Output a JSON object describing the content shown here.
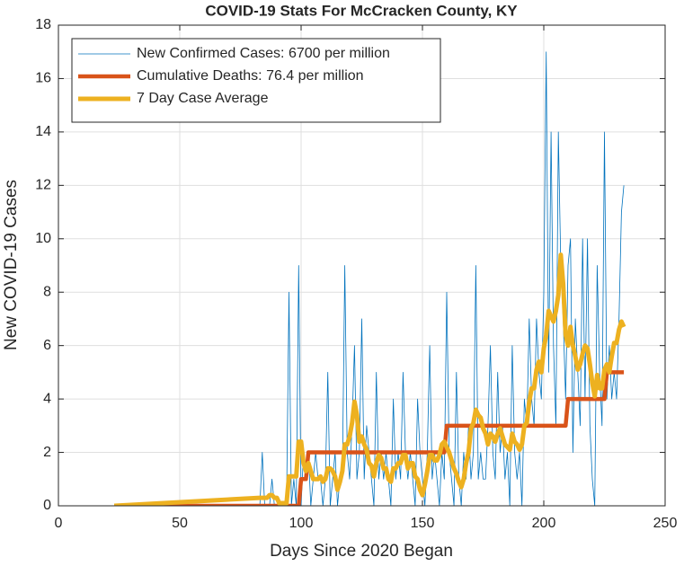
{
  "chart_data": {
    "type": "line",
    "title": "COVID-19 Stats For McCracken County, KY",
    "x_label": "Days Since 2020 Began",
    "y_label": "New COVID-19 Cases",
    "xlim": [
      0,
      250
    ],
    "xticks": [
      0,
      50,
      100,
      150,
      200,
      250
    ],
    "ylim": [
      0,
      18
    ],
    "yticks": [
      0,
      2,
      4,
      6,
      8,
      10,
      12,
      14,
      16,
      18
    ],
    "grid": true,
    "legend": "top-left",
    "x": [
      23,
      83,
      84,
      85,
      86,
      87,
      88,
      89,
      90,
      91,
      92,
      93,
      94,
      95,
      96,
      97,
      98,
      99,
      100,
      101,
      102,
      103,
      104,
      105,
      106,
      107,
      108,
      109,
      110,
      111,
      112,
      113,
      114,
      115,
      116,
      117,
      118,
      119,
      120,
      121,
      122,
      123,
      124,
      125,
      126,
      127,
      128,
      129,
      130,
      131,
      132,
      133,
      134,
      135,
      136,
      137,
      138,
      139,
      140,
      141,
      142,
      143,
      144,
      145,
      146,
      147,
      148,
      149,
      150,
      151,
      152,
      153,
      154,
      155,
      156,
      157,
      158,
      159,
      160,
      161,
      162,
      163,
      164,
      165,
      166,
      167,
      168,
      169,
      170,
      171,
      172,
      173,
      174,
      175,
      176,
      177,
      178,
      179,
      180,
      181,
      182,
      183,
      184,
      185,
      186,
      187,
      188,
      189,
      190,
      191,
      192,
      193,
      194,
      195,
      196,
      197,
      198,
      199,
      200,
      201,
      202,
      203,
      204,
      205,
      206,
      207,
      208,
      209,
      210,
      211,
      212,
      213,
      214,
      215,
      216,
      217,
      218,
      219,
      220,
      221,
      222,
      223,
      224,
      225,
      226,
      227,
      228,
      229,
      230,
      231,
      232,
      233
    ],
    "series": [
      {
        "name": "New Confirmed Cases: 6700 per million",
        "color": "#0072bd",
        "width": 0.8,
        "values": [
          0,
          0,
          2,
          0,
          0,
          0,
          1,
          0,
          0,
          0,
          0,
          0,
          0,
          8,
          0,
          1,
          0,
          9,
          0,
          2,
          1,
          2,
          0,
          1,
          2,
          1,
          1,
          0,
          1,
          5,
          0,
          1,
          2,
          0,
          1,
          1,
          9,
          2,
          1,
          3,
          6,
          1,
          2,
          7,
          1,
          3,
          2,
          1,
          0,
          5,
          1,
          2,
          1,
          2,
          1,
          0,
          4,
          1,
          2,
          1,
          5,
          2,
          1,
          2,
          1,
          0,
          4,
          2,
          1,
          0,
          2,
          6,
          1,
          2,
          1,
          0,
          2,
          1,
          8,
          2,
          1,
          0,
          5,
          1,
          0,
          2,
          1,
          3,
          1,
          2,
          9,
          1,
          2,
          1,
          1,
          3,
          6,
          2,
          1,
          5,
          2,
          3,
          1,
          2,
          0,
          6,
          2,
          1,
          2,
          0,
          4,
          3,
          7,
          4,
          3,
          7,
          5,
          4,
          8,
          17,
          5,
          14,
          6,
          3,
          14,
          9,
          7,
          4,
          9,
          10,
          2,
          7,
          5,
          3,
          10,
          4,
          10,
          3,
          1,
          0,
          9,
          5,
          3,
          14,
          4,
          6,
          4,
          5,
          4,
          7,
          11,
          12
        ]
      },
      {
        "name": "Cumulative Deaths: 76.4 per million",
        "color": "#d95319",
        "width": 4.5,
        "values": [
          0,
          0,
          0,
          0,
          0,
          0,
          0,
          0,
          0,
          0,
          0,
          0,
          0,
          0,
          0,
          0,
          0,
          0,
          1,
          1,
          1,
          2,
          2,
          2,
          2,
          2,
          2,
          2,
          2,
          2,
          2,
          2,
          2,
          2,
          2,
          2,
          2,
          2,
          2,
          2,
          2,
          2,
          2,
          2,
          2,
          2,
          2,
          2,
          2,
          2,
          2,
          2,
          2,
          2,
          2,
          2,
          2,
          2,
          2,
          2,
          2,
          2,
          2,
          2,
          2,
          2,
          2,
          2,
          2,
          2,
          2,
          2,
          2,
          2,
          2,
          2,
          2,
          2,
          3,
          3,
          3,
          3,
          3,
          3,
          3,
          3,
          3,
          3,
          3,
          3,
          3,
          3,
          3,
          3,
          3,
          3,
          3,
          3,
          3,
          3,
          3,
          3,
          3,
          3,
          3,
          3,
          3,
          3,
          3,
          3,
          3,
          3,
          3,
          3,
          3,
          3,
          3,
          3,
          3,
          3,
          3,
          3,
          3,
          3,
          3,
          3,
          3,
          3,
          4,
          4,
          4,
          4,
          4,
          4,
          4,
          4,
          4,
          4,
          4,
          4,
          4,
          4,
          4,
          4,
          5,
          5,
          5,
          5,
          5,
          5,
          5,
          5
        ]
      },
      {
        "name": "7 Day Case Average",
        "color": "#edb120",
        "width": 5,
        "values": [
          0,
          0.3,
          0.3,
          0.3,
          0.3,
          0.4,
          0.4,
          0.3,
          0.3,
          0.1,
          0.1,
          0.1,
          0.1,
          1.1,
          1.1,
          1.1,
          1.1,
          2.4,
          2.4,
          1.6,
          1.3,
          1.6,
          1.3,
          1.0,
          1.0,
          1.0,
          1.1,
          0.9,
          1.0,
          1.4,
          1.4,
          1.3,
          1.1,
          0.6,
          0.9,
          1.3,
          2.3,
          2.3,
          2.6,
          3.1,
          3.9,
          3.4,
          2.4,
          2.6,
          2.3,
          2.1,
          1.6,
          1.5,
          1.1,
          1.6,
          1.9,
          1.8,
          1.4,
          1.4,
          1.0,
          0.9,
          1.4,
          1.4,
          1.6,
          1.6,
          1.9,
          1.9,
          1.4,
          1.6,
          1.6,
          1.1,
          1.0,
          0.6,
          0.4,
          0.8,
          1.3,
          1.9,
          1.9,
          1.7,
          1.7,
          1.9,
          2.3,
          2.4,
          2.2,
          2.0,
          1.7,
          1.4,
          1.2,
          0.9,
          0.7,
          1.0,
          1.6,
          2.0,
          2.9,
          3.1,
          3.6,
          3.4,
          3.3,
          2.9,
          2.7,
          2.3,
          2.7,
          2.6,
          2.4,
          2.7,
          2.9,
          2.6,
          2.3,
          2.2,
          2.1,
          2.7,
          2.4,
          2.3,
          2.1,
          2.3,
          3.0,
          3.1,
          3.9,
          4.4,
          4.4,
          5.1,
          5.4,
          5.0,
          5.9,
          6.4,
          7.3,
          7.1,
          6.9,
          7.3,
          7.9,
          9.4,
          8.3,
          6.4,
          6.0,
          6.7,
          6.0,
          5.6,
          5.1,
          5.3,
          5.7,
          6.0,
          5.9,
          5.3,
          4.6,
          4.1,
          4.9,
          4.4,
          4.4,
          5.1,
          5.3,
          5.0,
          5.6,
          6.1,
          6.1,
          6.6,
          6.9,
          6.7
        ]
      }
    ]
  }
}
